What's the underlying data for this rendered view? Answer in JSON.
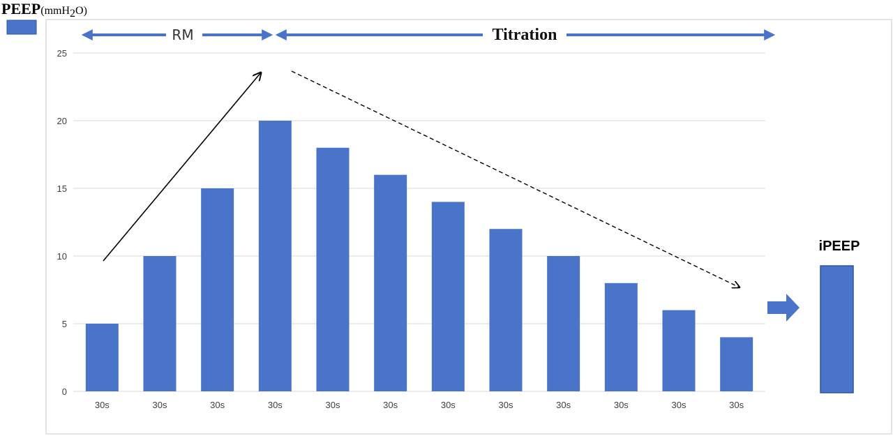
{
  "colors": {
    "bar": "#4a74c9",
    "bar_stroke": "#2f5597",
    "phase_arrow": "#4a74c9",
    "grid": "#d9d9d9",
    "frame": "#c8c8c8"
  },
  "legend": {
    "title": "PEEP",
    "unit_prefix": "(mmH",
    "unit_sub": "2",
    "unit_suffix": "O)"
  },
  "phases": {
    "rm_label": "RM",
    "titration_label": "Titration"
  },
  "ipeep": {
    "label": "iPEEP"
  },
  "chart_data": {
    "type": "bar",
    "title": "",
    "ylabel": "PEEP(mmH2O)",
    "xlabel": "",
    "categories": [
      "30s",
      "30s",
      "30s",
      "30s",
      "30s",
      "30s",
      "30s",
      "30s",
      "30s",
      "30s",
      "30s",
      "30s"
    ],
    "values": [
      5,
      10,
      15,
      20,
      18,
      16,
      14,
      12,
      10,
      8,
      6,
      4
    ],
    "ylim": [
      0,
      25
    ],
    "yticks": [
      0,
      5,
      10,
      15,
      20,
      25
    ],
    "grid": true,
    "legend_placement": "top-left",
    "annotations": [
      {
        "type": "arrow",
        "style": "solid",
        "meaning": "increasing PEEP during RM"
      },
      {
        "type": "arrow",
        "style": "dashed",
        "meaning": "decreasing PEEP during titration"
      }
    ]
  }
}
